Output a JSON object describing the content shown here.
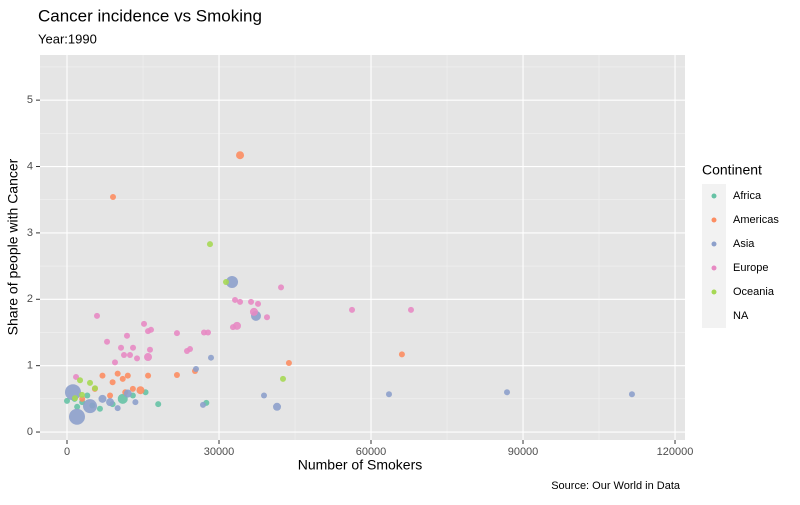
{
  "chart_data": {
    "type": "scatter",
    "title": "Cancer incidence vs Smoking",
    "subtitle": "Year:1990",
    "x_label": "Number of Smokers",
    "y_label": "Share of people with Cancer",
    "caption": "Source: Our World in Data",
    "legend_title": "Continent",
    "xlim": [
      -5330,
      121970
    ],
    "xticks": [
      0,
      30000,
      60000,
      90000,
      120000
    ],
    "xminor": [
      15000,
      45000,
      75000,
      105000
    ],
    "ylim": [
      -0.12,
      5.68
    ],
    "yticks": [
      0,
      1,
      2,
      3,
      4,
      5
    ],
    "yminor": [
      0.5,
      1.5,
      2.5,
      3.5,
      4.5,
      5.5
    ],
    "grid": true,
    "series": [
      {
        "name": "Africa",
        "color": "#66c2a5",
        "x": [
          0,
          1500,
          3000,
          5000,
          6500,
          9000,
          11000,
          13000,
          15500,
          18000,
          27500,
          4000,
          2000
        ],
        "values": [
          0.47,
          0.5,
          0.45,
          0.4,
          0.35,
          0.42,
          0.5,
          0.55,
          0.6,
          0.42,
          0.44,
          0.55,
          0.38
        ],
        "sizes": [
          3,
          3,
          3,
          3,
          3,
          3,
          5,
          3,
          3,
          3,
          3,
          3,
          3
        ]
      },
      {
        "name": "Americas",
        "color": "#fc8d62",
        "x": [
          9080,
          34150,
          66100,
          43800,
          21700,
          25260,
          10000,
          11000,
          12000,
          9000,
          13000,
          14500,
          16000,
          7000,
          5500,
          11500,
          8500,
          3000
        ],
        "values": [
          3.54,
          4.17,
          1.17,
          1.04,
          0.86,
          0.92,
          0.88,
          0.8,
          0.85,
          0.75,
          0.65,
          0.63,
          0.85,
          0.85,
          0.65,
          0.6,
          0.55,
          0.5
        ],
        "sizes": [
          3,
          4,
          3,
          3,
          3,
          3,
          3,
          3,
          3,
          3,
          3,
          4,
          3,
          3,
          3,
          3,
          3,
          3
        ]
      },
      {
        "name": "Asia",
        "color": "#8da0cb",
        "x": [
          32570,
          37300,
          63550,
          86840,
          111500,
          41450,
          38880,
          28420,
          25460,
          26840,
          1970,
          1180,
          4540,
          7000,
          12000,
          10000,
          13500,
          8500
        ],
        "values": [
          2.26,
          1.75,
          0.57,
          0.6,
          0.57,
          0.38,
          0.55,
          1.12,
          0.95,
          0.41,
          0.23,
          0.6,
          0.39,
          0.5,
          0.58,
          0.36,
          0.45,
          0.45
        ],
        "sizes": [
          6,
          5,
          3,
          3,
          3,
          4,
          3,
          3,
          3,
          3,
          8,
          8,
          7,
          4,
          4,
          3,
          3,
          4
        ]
      },
      {
        "name": "Europe",
        "color": "#e78ac3",
        "x": [
          5920,
          7900,
          33160,
          34150,
          33550,
          32760,
          36320,
          37700,
          39470,
          36900,
          42240,
          56250,
          67890,
          27040,
          27830,
          21700,
          15990,
          15200,
          16580,
          11840,
          10660,
          13030,
          12430,
          11250,
          15990,
          9470,
          13820,
          23680,
          24280,
          16380,
          1780
        ],
        "values": [
          1.75,
          1.36,
          1.99,
          1.96,
          1.6,
          1.58,
          1.96,
          1.93,
          1.73,
          1.81,
          2.18,
          1.84,
          1.84,
          1.5,
          1.5,
          1.49,
          1.52,
          1.63,
          1.54,
          1.45,
          1.27,
          1.27,
          1.16,
          1.16,
          1.13,
          1.05,
          1.11,
          1.22,
          1.25,
          1.24,
          0.83
        ],
        "sizes": [
          3,
          3,
          3,
          3,
          4,
          3,
          3,
          3,
          3,
          4,
          3,
          3,
          3,
          3,
          3,
          3,
          3,
          3,
          3,
          3,
          3,
          3,
          3,
          3,
          4,
          3,
          3,
          3,
          3,
          3,
          3
        ]
      },
      {
        "name": "Oceania",
        "color": "#a6d854",
        "x": [
          28220,
          31380,
          42630,
          2570,
          4540,
          1580,
          2960,
          5530
        ],
        "values": [
          2.83,
          2.26,
          0.8,
          0.78,
          0.74,
          0.51,
          0.56,
          0.66
        ],
        "sizes": [
          3,
          3,
          3,
          3,
          3,
          3,
          3,
          3
        ]
      },
      {
        "name": "NA",
        "x": [],
        "values": [],
        "sizes": []
      }
    ]
  }
}
